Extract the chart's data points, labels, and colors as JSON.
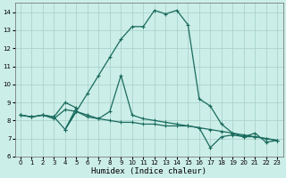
{
  "xlabel": "Humidex (Indice chaleur)",
  "bg_color": "#cceee8",
  "line_color": "#1a6b5e",
  "grid_color": "#aad4cc",
  "xlim": [
    -0.5,
    23.5
  ],
  "ylim": [
    6,
    14.5
  ],
  "yticks": [
    6,
    7,
    8,
    9,
    10,
    11,
    12,
    13,
    14
  ],
  "xticks": [
    0,
    1,
    2,
    3,
    4,
    5,
    6,
    7,
    8,
    9,
    10,
    11,
    12,
    13,
    14,
    15,
    16,
    17,
    18,
    19,
    20,
    21,
    22,
    23
  ],
  "lines": [
    {
      "x": [
        0,
        1,
        2,
        3,
        4,
        5,
        6,
        7,
        8,
        9,
        10,
        11,
        12,
        13,
        14,
        15,
        16,
        17,
        18,
        19,
        20,
        21,
        22,
        23
      ],
      "y": [
        8.3,
        8.2,
        8.3,
        8.2,
        7.5,
        8.5,
        9.5,
        10.5,
        11.5,
        12.5,
        13.2,
        13.2,
        14.1,
        13.9,
        14.1,
        13.3,
        9.2,
        8.8,
        7.8,
        7.3,
        7.1,
        7.3,
        6.8,
        6.9
      ]
    },
    {
      "x": [
        0,
        1,
        2,
        3,
        4,
        5,
        4,
        5,
        6,
        7,
        8,
        9,
        10,
        11,
        12,
        13,
        14,
        15,
        16,
        17,
        18,
        19,
        20,
        21,
        22,
        23
      ],
      "y": [
        8.3,
        8.2,
        8.3,
        8.2,
        9.0,
        8.7,
        7.5,
        8.5,
        8.2,
        8.1,
        8.5,
        10.5,
        8.3,
        8.1,
        8.0,
        7.9,
        7.8,
        7.7,
        7.6,
        7.5,
        7.4,
        7.3,
        7.2,
        7.1,
        7.0,
        6.9
      ]
    },
    {
      "x": [
        0,
        1,
        2,
        3,
        4,
        5,
        6,
        7,
        8,
        9,
        10,
        11,
        12,
        13,
        14,
        15,
        16,
        17,
        18,
        19,
        20,
        21,
        22,
        23
      ],
      "y": [
        8.3,
        8.2,
        8.3,
        8.1,
        8.6,
        8.5,
        8.3,
        8.1,
        8.0,
        7.9,
        7.9,
        7.8,
        7.8,
        7.7,
        7.7,
        7.7,
        7.6,
        6.5,
        7.1,
        7.2,
        7.1,
        7.1,
        7.0,
        6.9
      ]
    }
  ]
}
